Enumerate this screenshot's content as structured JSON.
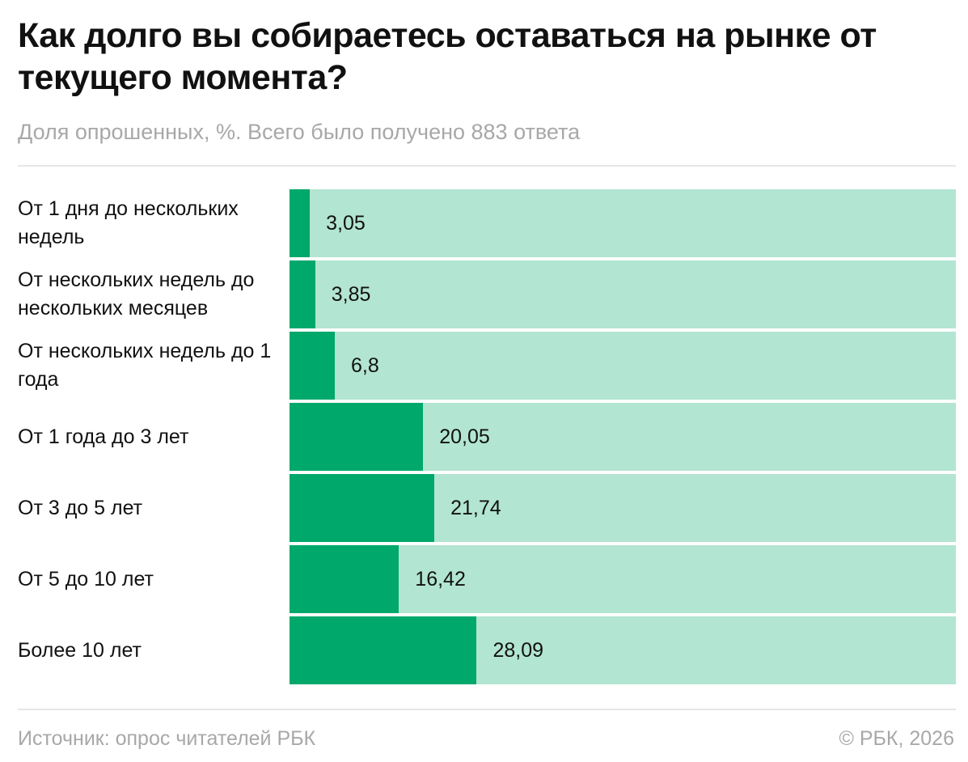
{
  "header": {
    "title": "Как долго вы собираетесь оставаться на рынке от текущего момента?",
    "subtitle": "Доля опрошенных, %. Всего было получено 883 ответа"
  },
  "footer": {
    "source": "Источник: опрос читателей РБК",
    "copyright": "© РБК, 2026"
  },
  "colors": {
    "fill": "#00a86b",
    "track": "#b2e5d2"
  },
  "chart_data": {
    "type": "bar",
    "orientation": "horizontal",
    "title": "Как долго вы собираетесь оставаться на рынке от текущего момента?",
    "subtitle": "Доля опрошенных, %. Всего было получено 883 ответа",
    "xlim": [
      0,
      100
    ],
    "categories": [
      "От 1 дня до нескольких недель",
      "От нескольких недель до нескольких месяцев",
      "От нескольких недель до 1 года",
      "От 1 года до 3 лет",
      "От 3 до 5 лет",
      "От 5 до 10 лет",
      "Более 10 лет"
    ],
    "values": [
      3.05,
      3.85,
      6.8,
      20.05,
      21.74,
      16.42,
      28.09
    ],
    "value_labels": [
      "3,05",
      "3,85",
      "6,8",
      "20,05",
      "21,74",
      "16,42",
      "28,09"
    ]
  }
}
